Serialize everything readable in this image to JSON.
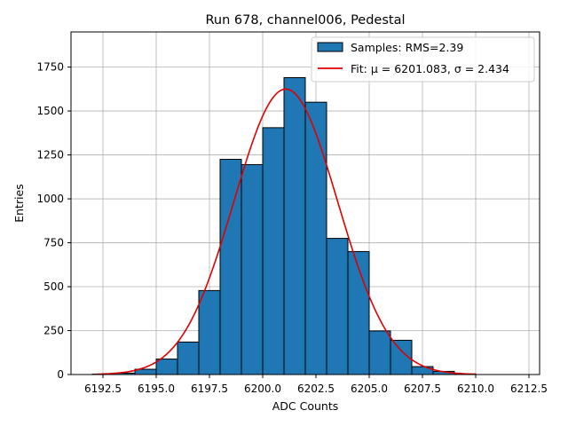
{
  "chart_data": {
    "type": "histogram",
    "title": "Run 678, channel006, Pedestal",
    "xlabel": "ADC Counts",
    "ylabel": "Entries",
    "xlim": [
      6191.0,
      6213.0
    ],
    "ylim": [
      0,
      1950
    ],
    "xticks": [
      6192.5,
      6195.0,
      6197.5,
      6200.0,
      6202.5,
      6205.0,
      6207.5,
      6210.0,
      6212.5
    ],
    "xtick_labels": [
      "6192.5",
      "6195.0",
      "6197.5",
      "6200.0",
      "6202.5",
      "6205.0",
      "6207.5",
      "6210.0",
      "6212.5"
    ],
    "yticks": [
      0,
      250,
      500,
      750,
      1000,
      1250,
      1500,
      1750
    ],
    "ytick_labels": [
      "0",
      "250",
      "500",
      "750",
      "1000",
      "1250",
      "1500",
      "1750"
    ],
    "grid": true,
    "legend_position": "top-right",
    "bars": {
      "name": "Samples: RMS=2.39",
      "color": "#1f77b4",
      "edge_color": "#000000",
      "bin_edges": [
        6192,
        6193,
        6194,
        6195,
        6196,
        6197,
        6198,
        6199,
        6200,
        6201,
        6202,
        6203,
        6204,
        6205,
        6206,
        6207,
        6208,
        6209,
        6210,
        6211,
        6212
      ],
      "values": [
        2,
        8,
        30,
        88,
        185,
        478,
        1225,
        1195,
        1405,
        1690,
        1550,
        775,
        700,
        248,
        195,
        45,
        18,
        3,
        0,
        0
      ]
    },
    "fit": {
      "name_prefix": "Fit: ",
      "mu_label": "μ = 6201.083",
      "sigma_label": "σ = 2.434",
      "color": "#e00000",
      "mu": 6201.083,
      "sigma": 2.434,
      "amplitude": 1625,
      "x_range": [
        6192.2,
        6210.0
      ]
    }
  }
}
